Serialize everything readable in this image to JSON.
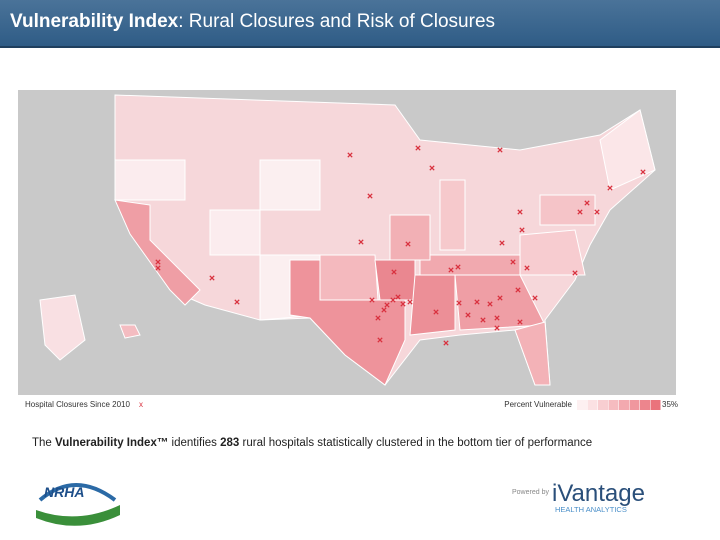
{
  "header": {
    "title_bold": "Vulnerability Index",
    "title_rest": ": Rural Closures and Risk of Closures"
  },
  "legend": {
    "closures_label": "Hospital Closures Since 2010",
    "closure_marker": "x",
    "percent_label": "Percent Vulnerable",
    "max_label": "35%"
  },
  "caption": {
    "part1": "The ",
    "bold1": "Vulnerability Index™",
    "part2": " identifies ",
    "bold2": "283",
    "part3": " rural hospitals statistically clustered in the bottom tier of performance"
  },
  "logos": {
    "nrha": "NRHA",
    "powered_by": "Powered by",
    "ivantage": "iVantage",
    "health_analytics": "HEALTH ANALYTICS"
  }
}
